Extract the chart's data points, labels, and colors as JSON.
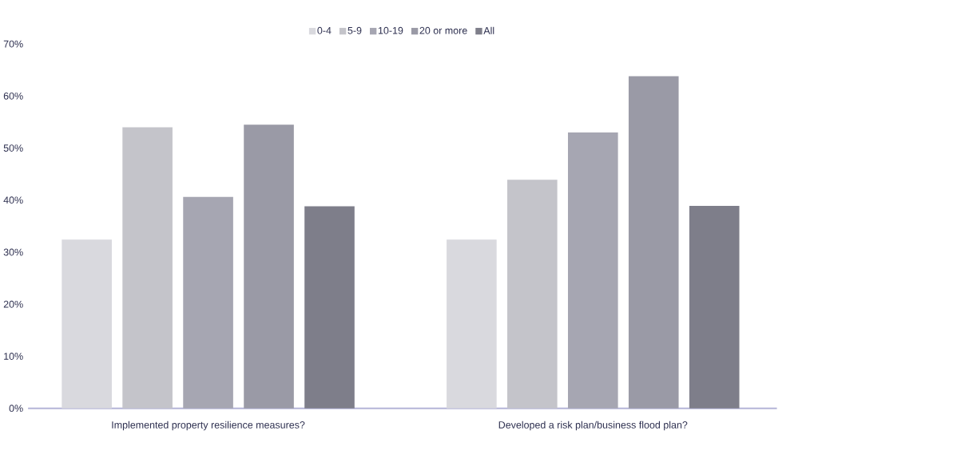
{
  "chart_data": {
    "type": "bar",
    "categories": [
      "Implemented property resilience measures?",
      "Developed a risk plan/business flood plan?"
    ],
    "series": [
      {
        "name": "0-4",
        "color": "#d9d9de",
        "values": [
          32.4,
          32.4
        ]
      },
      {
        "name": "5-9",
        "color": "#c4c4ca",
        "values": [
          54,
          43.9
        ]
      },
      {
        "name": "10-19",
        "color": "#a6a6b2",
        "values": [
          40.6,
          53
        ]
      },
      {
        "name": "20 or more",
        "color": "#9a9aa6",
        "values": [
          54.5,
          63.8
        ]
      },
      {
        "name": "All",
        "color": "#7e7e8a",
        "values": [
          38.8,
          38.9
        ]
      }
    ],
    "ylim": [
      0,
      70
    ],
    "yticks": [
      {
        "value": 0,
        "label": "0%"
      },
      {
        "value": 10,
        "label": "10%"
      },
      {
        "value": 20,
        "label": "20%"
      },
      {
        "value": 30,
        "label": "30%"
      },
      {
        "value": 40,
        "label": "40%"
      },
      {
        "value": 50,
        "label": "50%"
      },
      {
        "value": 60,
        "label": "60%"
      },
      {
        "value": 70,
        "label": "70%"
      }
    ],
    "legend": "top"
  }
}
